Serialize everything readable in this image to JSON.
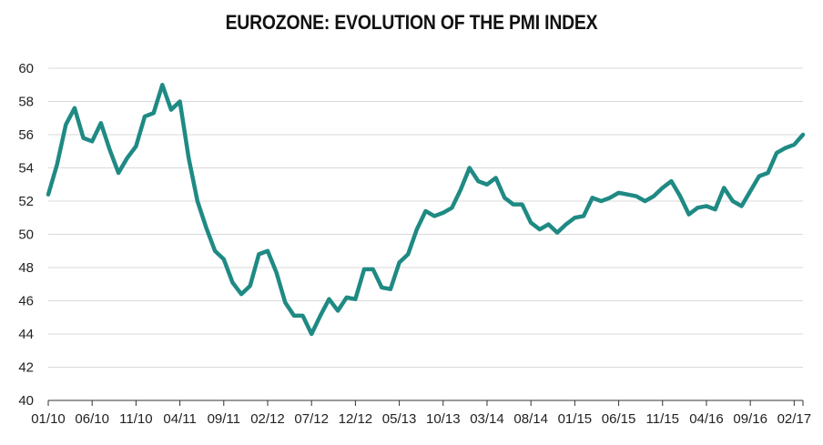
{
  "chart_data": {
    "type": "line",
    "title": "EUROZONE: EVOLUTION OF THE PMI INDEX",
    "xlabel": "",
    "ylabel": "",
    "ylim": [
      40,
      60
    ],
    "yticks": [
      40,
      42,
      44,
      46,
      48,
      50,
      52,
      54,
      56,
      58,
      60
    ],
    "xticks": [
      "01/10",
      "06/10",
      "11/10",
      "04/11",
      "09/11",
      "02/12",
      "07/12",
      "12/12",
      "05/13",
      "10/13",
      "03/14",
      "08/14",
      "01/15",
      "06/15",
      "11/15",
      "04/16",
      "09/16",
      "02/17"
    ],
    "grid": true,
    "line_color": "#1f8a84",
    "series": [
      {
        "name": "",
        "x_start": "01/10",
        "frequency": "monthly",
        "values": [
          52.4,
          54.2,
          56.6,
          57.6,
          55.8,
          55.6,
          56.7,
          55.1,
          53.7,
          54.6,
          55.3,
          57.1,
          57.3,
          59.0,
          57.5,
          58.0,
          54.6,
          52.0,
          50.4,
          49.0,
          48.5,
          47.1,
          46.4,
          46.9,
          48.8,
          49.0,
          47.7,
          45.9,
          45.1,
          45.1,
          44.0,
          45.1,
          46.1,
          45.4,
          46.2,
          46.1,
          47.9,
          47.9,
          46.8,
          46.7,
          48.3,
          48.8,
          50.3,
          51.4,
          51.1,
          51.3,
          51.6,
          52.7,
          54.0,
          53.2,
          53.0,
          53.4,
          52.2,
          51.8,
          51.8,
          50.7,
          50.3,
          50.6,
          50.1,
          50.6,
          51.0,
          51.1,
          52.2,
          52.0,
          52.2,
          52.5,
          52.4,
          52.3,
          52.0,
          52.3,
          52.8,
          53.2,
          52.3,
          51.2,
          51.6,
          51.7,
          51.5,
          52.8,
          52.0,
          51.7,
          52.6,
          53.5,
          53.7,
          54.9,
          55.2,
          55.4,
          56.0
        ]
      }
    ]
  }
}
